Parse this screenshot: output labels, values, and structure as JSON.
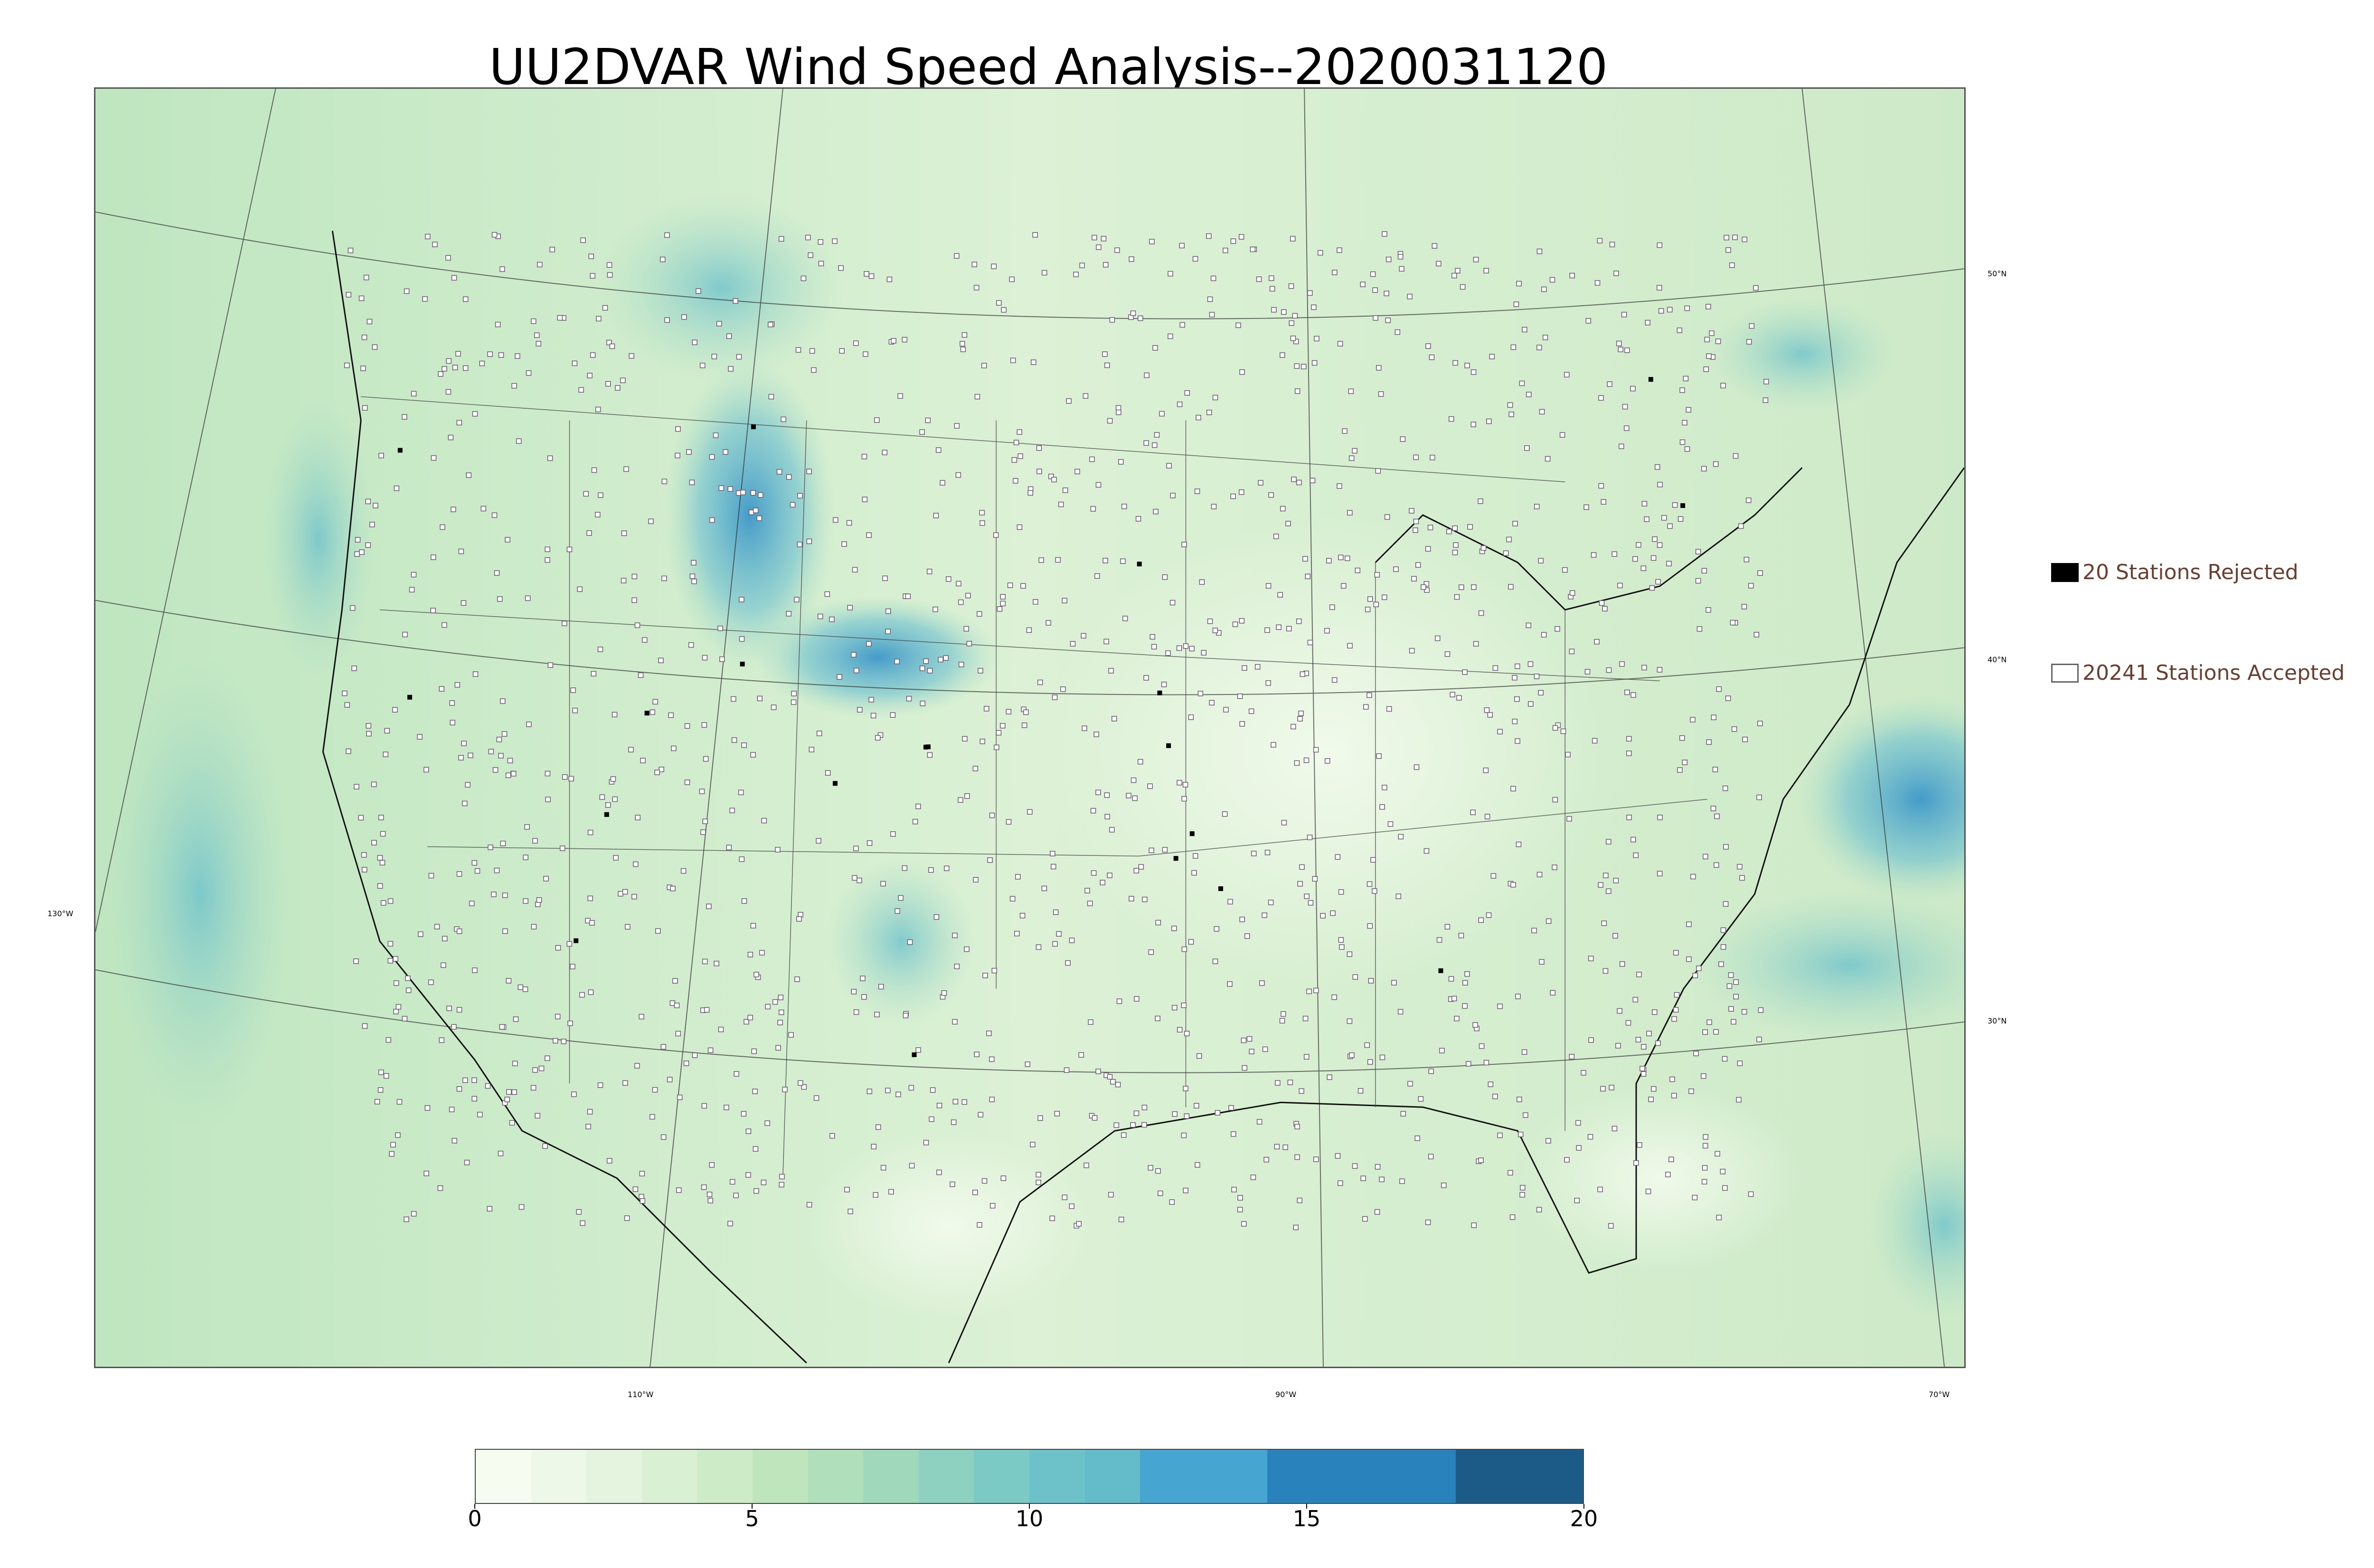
{
  "title": "UU2DVAR Wind Speed Analysis--2020031120",
  "map": {
    "lat_labels": [
      "50°N",
      "40°N",
      "30°N"
    ],
    "lon_labels": [
      "130°W",
      "110°W",
      "90°W",
      "70°W"
    ]
  },
  "legend": {
    "rejected": {
      "label": "20 Stations Rejected",
      "color": "#000000"
    },
    "accepted": {
      "label": "20241 Stations Accepted",
      "color": "#ffffff"
    }
  },
  "colorbar": {
    "min": 0,
    "max": 20,
    "tick_labels": [
      "0",
      "5",
      "10",
      "15",
      "20"
    ],
    "tick_values": [
      0,
      5,
      10,
      15,
      20
    ],
    "bins": [
      {
        "from": 0,
        "to": 1,
        "color": "#f7fcf0"
      },
      {
        "from": 1,
        "to": 2,
        "color": "#eef8e9"
      },
      {
        "from": 2,
        "to": 3,
        "color": "#e4f4de"
      },
      {
        "from": 3,
        "to": 4,
        "color": "#d9f0d3"
      },
      {
        "from": 4,
        "to": 5,
        "color": "#cdebc6"
      },
      {
        "from": 5,
        "to": 6,
        "color": "#bfe5bd"
      },
      {
        "from": 6,
        "to": 7,
        "color": "#b0dfbb"
      },
      {
        "from": 7,
        "to": 8,
        "color": "#9fd8bb"
      },
      {
        "from": 8,
        "to": 9,
        "color": "#8ed1c0"
      },
      {
        "from": 9,
        "to": 10,
        "color": "#7ccac5"
      },
      {
        "from": 10,
        "to": 11,
        "color": "#6dc2c9"
      },
      {
        "from": 11,
        "to": 12,
        "color": "#64bccb"
      },
      {
        "from": 12,
        "to": 14.3,
        "color": "#46a6d1"
      },
      {
        "from": 14.3,
        "to": 17.7,
        "color": "#2a82bd"
      },
      {
        "from": 17.7,
        "to": 20,
        "color": "#1c5a87"
      }
    ]
  }
}
